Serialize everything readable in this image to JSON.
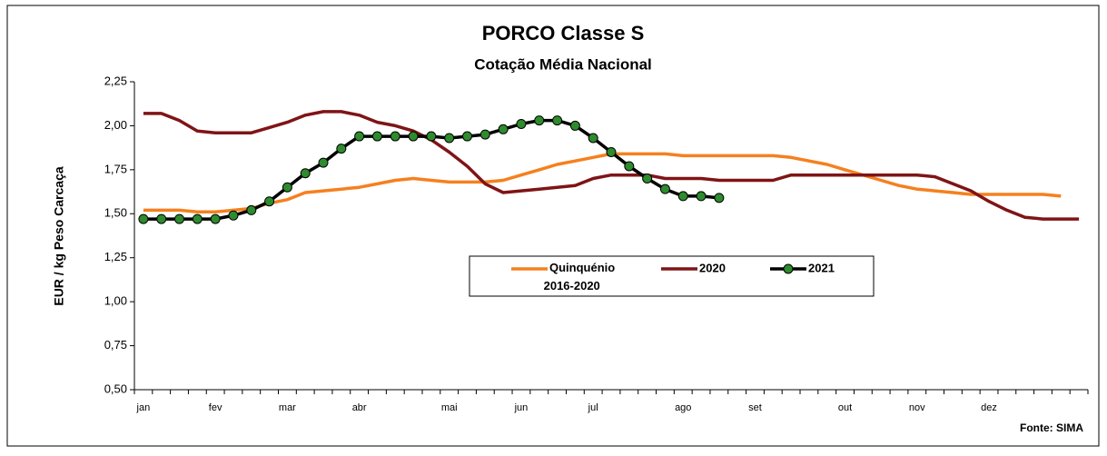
{
  "chart_data": {
    "type": "line",
    "title": "PORCO Classe S",
    "subtitle": "Cotação Média Nacional",
    "y_label": "EUR / kg Peso Carcaça",
    "source": "Fonte: SIMA",
    "categories": [
      "jan",
      null,
      null,
      null,
      "fev",
      null,
      null,
      null,
      "mar",
      null,
      null,
      null,
      "abr",
      null,
      null,
      null,
      null,
      "mai",
      null,
      null,
      null,
      "jun",
      null,
      null,
      null,
      "jul",
      null,
      null,
      null,
      null,
      "ago",
      null,
      null,
      null,
      "set",
      null,
      null,
      null,
      null,
      "out",
      null,
      null,
      null,
      "nov",
      null,
      null,
      null,
      "dez",
      null,
      null,
      null,
      null,
      null
    ],
    "ylim": [
      0.5,
      2.25
    ],
    "yticks": [
      {
        "value": 0.5,
        "label": "0,50"
      },
      {
        "value": 0.75,
        "label": "0,75"
      },
      {
        "value": 1.0,
        "label": "1,00"
      },
      {
        "value": 1.25,
        "label": "1,25"
      },
      {
        "value": 1.5,
        "label": "1,50"
      },
      {
        "value": 1.75,
        "label": "1,75"
      },
      {
        "value": 2.0,
        "label": "2,00"
      },
      {
        "value": 2.25,
        "label": "2,25"
      }
    ],
    "series": [
      {
        "name": "Quinquénio 2016-2020",
        "color": "#f5801f",
        "marker": false,
        "values": [
          1.52,
          1.52,
          1.52,
          1.51,
          1.51,
          1.52,
          1.53,
          1.56,
          1.58,
          1.62,
          1.63,
          1.64,
          1.65,
          1.67,
          1.69,
          1.7,
          1.69,
          1.68,
          1.68,
          1.68,
          1.69,
          1.72,
          1.75,
          1.78,
          1.8,
          1.82,
          1.84,
          1.84,
          1.84,
          1.84,
          1.83,
          1.83,
          1.83,
          1.83,
          1.83,
          1.83,
          1.82,
          1.8,
          1.78,
          1.75,
          1.72,
          1.69,
          1.66,
          1.64,
          1.63,
          1.62,
          1.61,
          1.61,
          1.61,
          1.61,
          1.61,
          1.6,
          null
        ]
      },
      {
        "name": "2020",
        "color": "#7f1416",
        "marker": false,
        "values": [
          2.07,
          2.07,
          2.03,
          1.97,
          1.96,
          1.96,
          1.96,
          1.99,
          2.02,
          2.06,
          2.08,
          2.08,
          2.06,
          2.02,
          2.0,
          1.97,
          1.92,
          1.85,
          1.77,
          1.67,
          1.62,
          1.63,
          1.64,
          1.65,
          1.66,
          1.7,
          1.72,
          1.72,
          1.72,
          1.7,
          1.7,
          1.7,
          1.69,
          1.69,
          1.69,
          1.69,
          1.72,
          1.72,
          1.72,
          1.72,
          1.72,
          1.72,
          1.72,
          1.72,
          1.71,
          1.67,
          1.63,
          1.57,
          1.52,
          1.48,
          1.47,
          1.47,
          1.47
        ]
      },
      {
        "name": "2021",
        "color": "#000000",
        "marker": true,
        "marker_color": "#2e8b2e",
        "values": [
          1.47,
          1.47,
          1.47,
          1.47,
          1.47,
          1.49,
          1.52,
          1.57,
          1.65,
          1.73,
          1.79,
          1.87,
          1.94,
          1.94,
          1.94,
          1.94,
          1.94,
          1.93,
          1.94,
          1.95,
          1.98,
          2.01,
          2.03,
          2.03,
          2.0,
          1.93,
          1.85,
          1.77,
          1.7,
          1.64,
          1.6,
          1.6,
          1.59,
          null,
          null,
          null,
          null,
          null,
          null,
          null,
          null,
          null,
          null,
          null,
          null,
          null,
          null,
          null,
          null,
          null,
          null,
          null,
          null
        ]
      }
    ]
  }
}
